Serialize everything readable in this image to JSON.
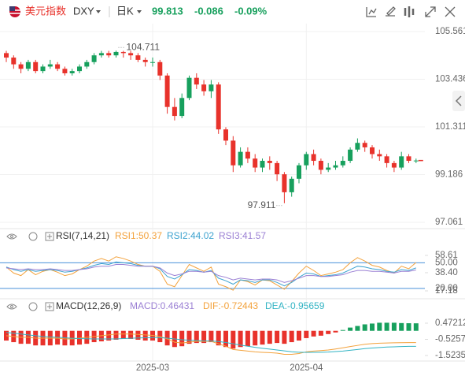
{
  "header": {
    "name": "美元指数",
    "symbol": "DXY",
    "period": "日K",
    "price": 99.813,
    "change": -0.086,
    "change_pct": "-0.09%"
  },
  "chart_data": [
    {
      "type": "candlestick",
      "up_color": "#17a05d",
      "down_color": "#e8322b",
      "categories": [
        null,
        null,
        null,
        null,
        null,
        null,
        null,
        null,
        null,
        null,
        null,
        null,
        null,
        null,
        null,
        null,
        null,
        null,
        null,
        null,
        "2025-03",
        null,
        null,
        null,
        null,
        null,
        null,
        null,
        null,
        null,
        null,
        null,
        null,
        null,
        null,
        null,
        null,
        null,
        null,
        null,
        null,
        "2025-04",
        null,
        null,
        null,
        null,
        null,
        null,
        null,
        null,
        null,
        null,
        null,
        null,
        null,
        null,
        null
      ],
      "open": [
        104.6,
        104.4,
        104.1,
        103.9,
        104.2,
        103.8,
        104.0,
        104.1,
        103.9,
        103.7,
        103.8,
        104.0,
        104.2,
        104.5,
        104.6,
        104.5,
        104.65,
        104.6,
        104.5,
        104.3,
        104.2,
        104.2,
        103.6,
        102.2,
        101.8,
        102.6,
        103.5,
        103.2,
        102.9,
        103.2,
        101.2,
        100.7,
        99.6,
        100.2,
        99.9,
        99.5,
        99.8,
        99.7,
        99.2,
        98.4,
        99.0,
        99.6,
        100.1,
        99.8,
        99.4,
        99.5,
        99.6,
        99.8,
        100.3,
        100.6,
        100.4,
        100.1,
        100.0,
        99.7,
        99.5,
        100.0,
        99.8
      ],
      "high": [
        104.7,
        104.5,
        104.2,
        104.3,
        104.3,
        104.1,
        104.3,
        104.2,
        104.0,
        103.9,
        104.1,
        104.3,
        104.6,
        104.7,
        104.7,
        104.711,
        104.7,
        104.7,
        104.6,
        104.4,
        104.4,
        104.3,
        103.7,
        102.6,
        102.8,
        103.6,
        103.7,
        103.4,
        103.4,
        103.3,
        101.3,
        100.9,
        100.4,
        100.4,
        100.1,
        99.9,
        100.0,
        99.8,
        99.3,
        99.1,
        99.7,
        100.2,
        100.3,
        99.9,
        99.7,
        99.8,
        100.0,
        100.4,
        100.8,
        100.7,
        100.5,
        100.3,
        100.1,
        99.8,
        100.2,
        100.1,
        99.9
      ],
      "low": [
        104.2,
        103.9,
        103.7,
        103.8,
        103.7,
        103.7,
        103.9,
        103.8,
        103.6,
        103.6,
        103.7,
        103.9,
        104.1,
        104.4,
        104.4,
        104.4,
        104.4,
        104.3,
        104.2,
        104.0,
        104.0,
        103.4,
        101.9,
        101.6,
        101.7,
        102.5,
        103.0,
        102.7,
        102.6,
        101.0,
        100.5,
        99.3,
        99.5,
        99.7,
        99.3,
        99.3,
        99.4,
        98.9,
        97.911,
        98.2,
        98.8,
        99.4,
        99.6,
        99.2,
        99.3,
        99.4,
        99.5,
        99.7,
        100.2,
        100.2,
        99.9,
        99.8,
        99.5,
        99.3,
        99.4,
        99.7,
        99.7
      ],
      "close": [
        104.4,
        104.1,
        103.9,
        104.2,
        103.8,
        104.0,
        104.1,
        103.9,
        103.7,
        103.8,
        104.0,
        104.2,
        104.5,
        104.6,
        104.5,
        104.65,
        104.6,
        104.5,
        104.3,
        104.2,
        104.2,
        103.6,
        102.2,
        101.8,
        102.6,
        103.5,
        103.2,
        102.9,
        103.2,
        101.2,
        100.7,
        99.6,
        100.2,
        99.9,
        99.5,
        99.8,
        99.7,
        99.2,
        98.4,
        99.0,
        99.6,
        100.1,
        99.8,
        99.4,
        99.5,
        99.6,
        99.8,
        100.3,
        100.6,
        100.4,
        100.1,
        100.0,
        99.7,
        99.5,
        100.0,
        99.8,
        99.813
      ],
      "annotations": [
        "104.711",
        "97.911"
      ],
      "ylim": [
        97.061,
        105.561
      ],
      "yticks": [
        97.061,
        99.186,
        101.311,
        103.436,
        105.561
      ],
      "grid": true
    },
    {
      "type": "line",
      "title": "RSI(7,14,21)",
      "series": [
        {
          "name": "RSI1:50.37",
          "color": "#f3a23c",
          "values": [
            45,
            38,
            35,
            42,
            36,
            40,
            42,
            39,
            35,
            37,
            42,
            46,
            52,
            55,
            52,
            57,
            55,
            52,
            48,
            46,
            46,
            40,
            25,
            22,
            35,
            48,
            44,
            40,
            45,
            25,
            22,
            18,
            30,
            28,
            24,
            30,
            29,
            24,
            19,
            28,
            38,
            46,
            41,
            35,
            37,
            39,
            42,
            50,
            56,
            52,
            47,
            45,
            41,
            38,
            46,
            43,
            50.37
          ]
        },
        {
          "name": "RSI2:44.02",
          "color": "#3ea3d0",
          "values": [
            45,
            42,
            40,
            42,
            40,
            41,
            42,
            41,
            39,
            40,
            42,
            44,
            47,
            49,
            48,
            51,
            50,
            49,
            47,
            46,
            46,
            43,
            34,
            31,
            36,
            42,
            41,
            39,
            41,
            32,
            29,
            25,
            30,
            29,
            27,
            30,
            30,
            27,
            23,
            27,
            33,
            38,
            37,
            34,
            35,
            36,
            38,
            42,
            46,
            45,
            43,
            42,
            40,
            39,
            42,
            41,
            44.02
          ]
        },
        {
          "name": "RSI3:41.57",
          "color": "#9b80d4",
          "values": [
            44,
            43,
            42,
            43,
            42,
            42,
            43,
            42,
            41,
            41,
            42,
            43,
            45,
            46,
            46,
            48,
            48,
            47,
            46,
            46,
            46,
            44,
            38,
            35,
            37,
            40,
            40,
            39,
            40,
            35,
            33,
            30,
            32,
            31,
            30,
            31,
            31,
            30,
            27,
            29,
            32,
            35,
            35,
            34,
            34,
            35,
            36,
            39,
            41,
            41,
            40,
            40,
            39,
            38,
            40,
            40,
            41.57
          ]
        }
      ],
      "ref_lines": [
        {
          "value": 50,
          "label": "50.00"
        },
        {
          "value": 20,
          "label": "20.00"
        }
      ],
      "ref_color": "#4a90d9",
      "ylim": [
        17.18,
        58.61
      ],
      "yticks": [
        17.18,
        {
          "value": 38.4,
          "label": "38.40"
        },
        58.61
      ]
    },
    {
      "type": "macd",
      "title": "MACD(12,26,9)",
      "up_color": "#17a05d",
      "down_color": "#e8322b",
      "histogram": {
        "name": "MACD:0.46431",
        "color": "#9b80d4",
        "values": [
          -0.6,
          -0.7,
          -0.8,
          -0.8,
          -0.9,
          -0.9,
          -0.9,
          -0.85,
          -0.9,
          -0.9,
          -0.85,
          -0.8,
          -0.7,
          -0.65,
          -0.6,
          -0.55,
          -0.5,
          -0.5,
          -0.55,
          -0.6,
          -0.6,
          -0.7,
          -0.9,
          -1.0,
          -0.95,
          -0.8,
          -0.75,
          -0.75,
          -0.7,
          -0.9,
          -1.0,
          -1.1,
          -1.0,
          -0.95,
          -0.9,
          -0.85,
          -0.8,
          -0.75,
          -0.8,
          -0.7,
          -0.6,
          -0.45,
          -0.35,
          -0.3,
          -0.2,
          -0.1,
          0.05,
          0.2,
          0.3,
          0.4,
          0.45,
          0.5,
          0.5,
          0.5,
          0.48,
          0.47,
          0.46431
        ]
      },
      "series": [
        {
          "name": "DIF:-0.72443",
          "color": "#f3a23c",
          "values": [
            -0.3,
            -0.35,
            -0.4,
            -0.4,
            -0.45,
            -0.45,
            -0.45,
            -0.45,
            -0.5,
            -0.5,
            -0.45,
            -0.4,
            -0.35,
            -0.3,
            -0.25,
            -0.2,
            -0.2,
            -0.2,
            -0.22,
            -0.25,
            -0.28,
            -0.35,
            -0.5,
            -0.7,
            -0.75,
            -0.7,
            -0.65,
            -0.65,
            -0.65,
            -0.8,
            -0.95,
            -1.15,
            -1.2,
            -1.25,
            -1.3,
            -1.33,
            -1.35,
            -1.38,
            -1.45,
            -1.45,
            -1.4,
            -1.3,
            -1.25,
            -1.22,
            -1.18,
            -1.12,
            -1.05,
            -0.97,
            -0.9,
            -0.83,
            -0.79,
            -0.76,
            -0.75,
            -0.74,
            -0.73,
            -0.725,
            -0.72443
          ]
        },
        {
          "name": "DEA:-0.95659",
          "color": "#33b4c4",
          "values": [
            -0.1,
            -0.15,
            -0.2,
            -0.25,
            -0.3,
            -0.35,
            -0.38,
            -0.4,
            -0.43,
            -0.46,
            -0.48,
            -0.49,
            -0.5,
            -0.5,
            -0.5,
            -0.5,
            -0.48,
            -0.46,
            -0.44,
            -0.43,
            -0.42,
            -0.42,
            -0.45,
            -0.5,
            -0.55,
            -0.58,
            -0.6,
            -0.62,
            -0.63,
            -0.66,
            -0.72,
            -0.8,
            -0.88,
            -0.95,
            -1.02,
            -1.08,
            -1.13,
            -1.18,
            -1.24,
            -1.29,
            -1.32,
            -1.33,
            -1.33,
            -1.32,
            -1.31,
            -1.28,
            -1.25,
            -1.2,
            -1.15,
            -1.1,
            -1.06,
            -1.03,
            -1.0,
            -0.99,
            -0.97,
            -0.96,
            -0.95659
          ]
        }
      ],
      "ylim": [
        -1.52352,
        0.47212
      ],
      "yticks": [
        -1.52352,
        {
          "value": -0.5257,
          "label": "-0.52570"
        },
        0.47212
      ]
    }
  ]
}
